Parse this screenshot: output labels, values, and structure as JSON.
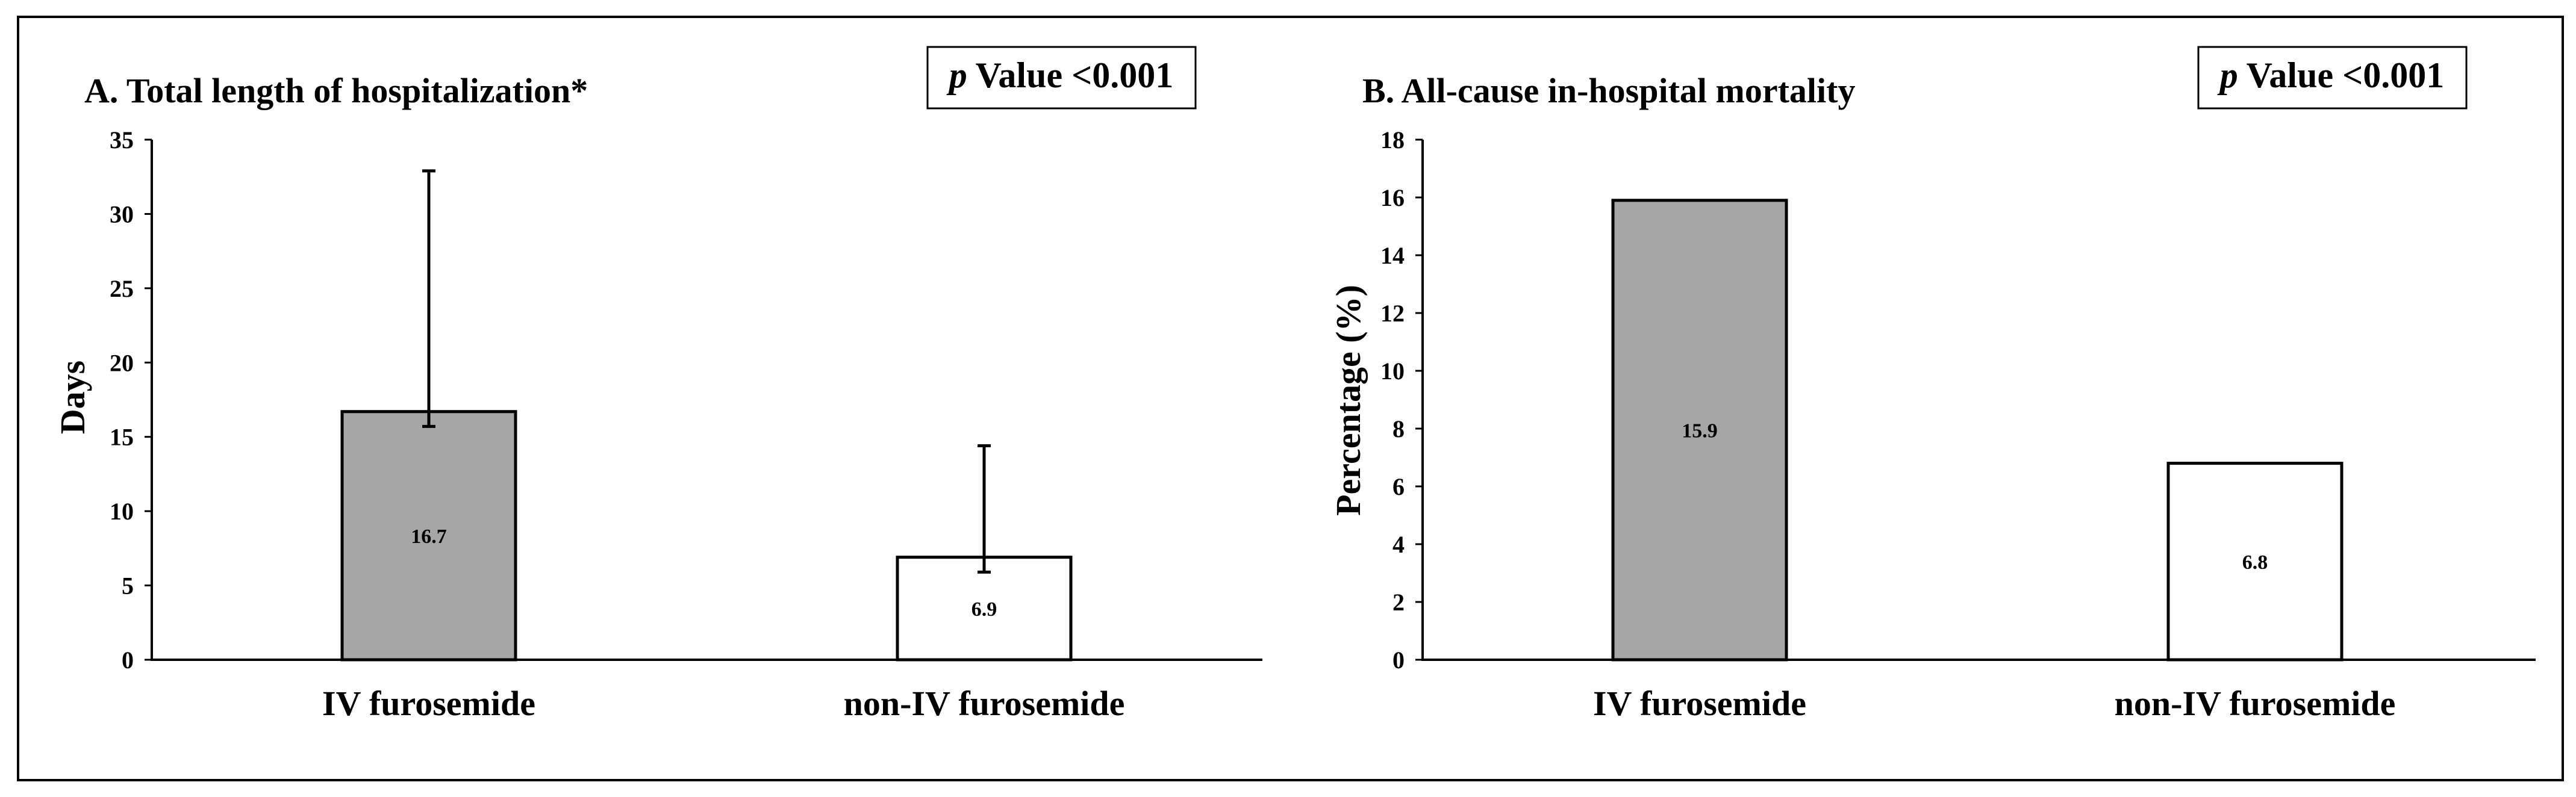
{
  "chart_data": [
    {
      "type": "bar",
      "title": "A. Total length of hospitalization*",
      "annotation_italic": "p",
      "annotation_rest": " Value <0.001",
      "ylabel": "Days",
      "xlabel": "",
      "categories": [
        "IV furosemide",
        "non-IV furosemide"
      ],
      "values": [
        16.7,
        6.9
      ],
      "value_labels": [
        "16.7",
        "6.9"
      ],
      "error_upper": [
        32.9,
        14.4
      ],
      "error_lower": [
        15.7,
        5.9
      ],
      "bar_colors": [
        "#a6a6a6",
        "#ffffff"
      ],
      "ylim": [
        0,
        35
      ],
      "yticks": [
        0,
        5,
        10,
        15,
        20,
        25,
        30,
        35
      ],
      "ytick_labels": [
        "0",
        "5",
        "10",
        "15",
        "20",
        "25",
        "30",
        "35"
      ],
      "grid": false,
      "legend": "none"
    },
    {
      "type": "bar",
      "title": "B. All-cause in-hospital mortality",
      "annotation_italic": "p",
      "annotation_rest": " Value <0.001",
      "ylabel": "Percentage (%)",
      "xlabel": "",
      "categories": [
        "IV furosemide",
        "non-IV furosemide"
      ],
      "values": [
        15.9,
        6.8
      ],
      "value_labels": [
        "15.9",
        "6.8"
      ],
      "bar_colors": [
        "#a6a6a6",
        "#ffffff"
      ],
      "ylim": [
        0,
        18
      ],
      "yticks": [
        0,
        2,
        4,
        6,
        8,
        10,
        12,
        14,
        16,
        18
      ],
      "ytick_labels": [
        "0",
        "2",
        "4",
        "6",
        "8",
        "10",
        "12",
        "14",
        "16",
        "18"
      ],
      "grid": false,
      "legend": "none"
    }
  ]
}
